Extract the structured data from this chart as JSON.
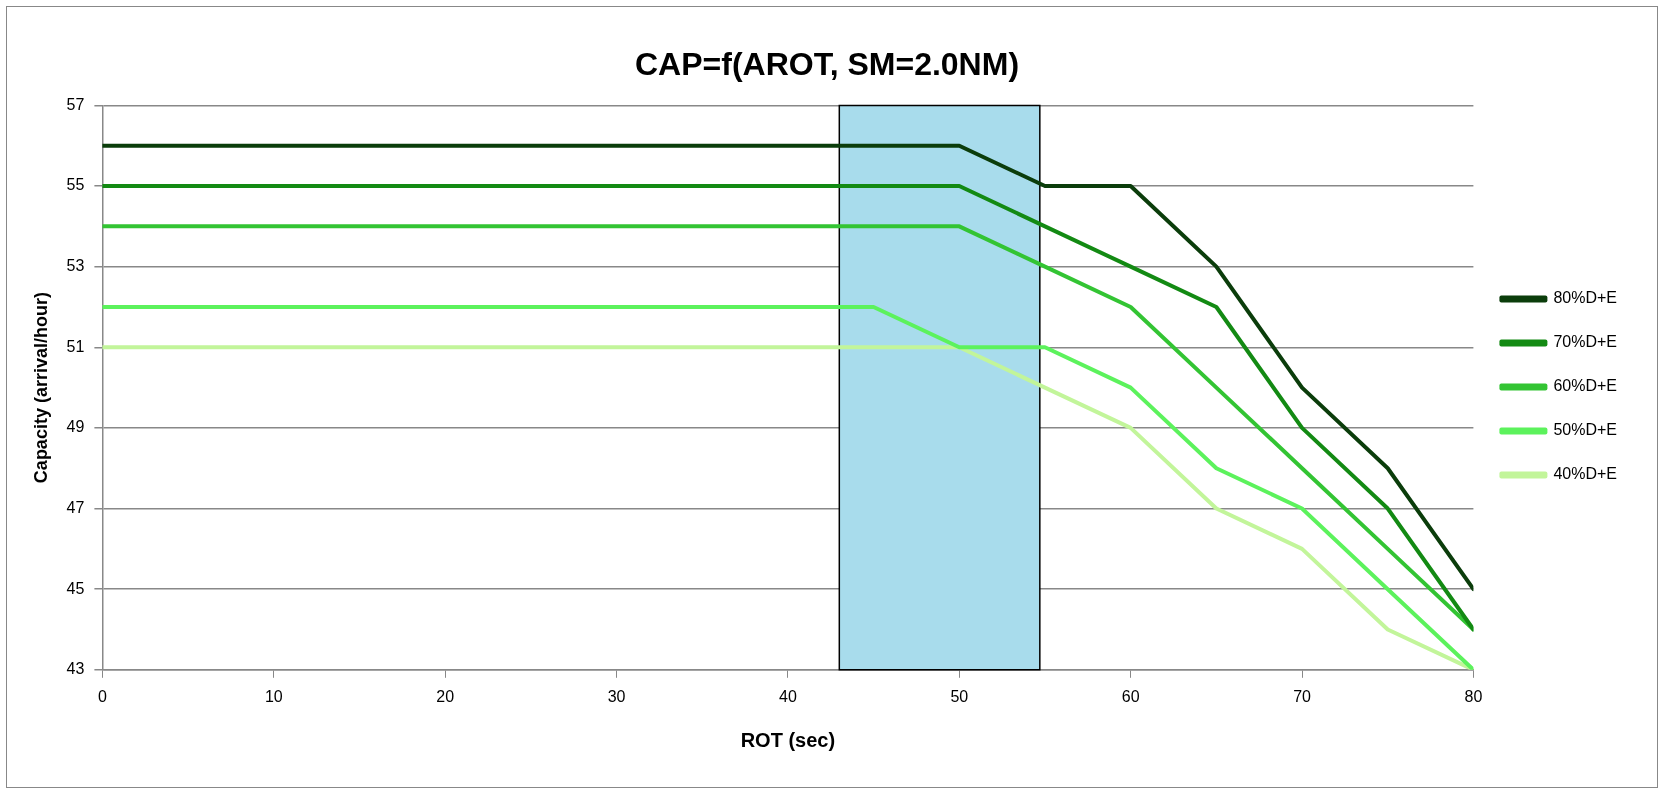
{
  "chart_data": {
    "type": "line",
    "title": "CAP=f(AROT, SM=2.0NM)",
    "xlabel": "ROT (sec)",
    "ylabel": "Capacity (arrival/hour)",
    "x": [
      0,
      5,
      10,
      15,
      20,
      25,
      30,
      35,
      40,
      45,
      50,
      55,
      60,
      65,
      70,
      75,
      80
    ],
    "series": [
      {
        "name": "80%D+E",
        "color": "#0b3d0b",
        "values": [
          56,
          56,
          56,
          56,
          56,
          56,
          56,
          56,
          56,
          56,
          56,
          55,
          55,
          53,
          50,
          48,
          45
        ]
      },
      {
        "name": "70%D+E",
        "color": "#138a13",
        "values": [
          55,
          55,
          55,
          55,
          55,
          55,
          55,
          55,
          55,
          55,
          55,
          54,
          53,
          52,
          49,
          47,
          44
        ]
      },
      {
        "name": "60%D+E",
        "color": "#33c433",
        "values": [
          54,
          54,
          54,
          54,
          54,
          54,
          54,
          54,
          54,
          54,
          54,
          53,
          52,
          50,
          48,
          46,
          44
        ]
      },
      {
        "name": "50%D+E",
        "color": "#5cf25c",
        "values": [
          52,
          52,
          52,
          52,
          52,
          52,
          52,
          52,
          52,
          52,
          51,
          51,
          50,
          48,
          47,
          45,
          43
        ]
      },
      {
        "name": "40%D+E",
        "color": "#c2f59a",
        "values": [
          51,
          51,
          51,
          51,
          51,
          51,
          51,
          51,
          51,
          51,
          51,
          50,
          49,
          47,
          46,
          44,
          43
        ]
      }
    ],
    "xlim": [
      0,
      80
    ],
    "xticks": [
      0,
      10,
      20,
      30,
      40,
      50,
      60,
      70,
      80
    ],
    "ylim": [
      43,
      57
    ],
    "yticks": [
      43,
      45,
      47,
      49,
      51,
      53,
      55,
      57
    ],
    "bands": [
      {
        "axis": "x",
        "from": 43,
        "to": 54.7,
        "color": "#a8dcec"
      }
    ],
    "grid": "y",
    "legend": "right",
    "marker": "none",
    "line_style": "solid"
  }
}
